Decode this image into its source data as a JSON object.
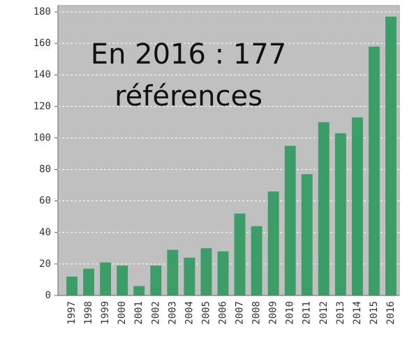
{
  "chart_data": {
    "type": "bar",
    "categories": [
      "1997",
      "1998",
      "1999",
      "2000",
      "2001",
      "2002",
      "2003",
      "2004",
      "2005",
      "2006",
      "2007",
      "2008",
      "2009",
      "2010",
      "2011",
      "2012",
      "2013",
      "2014",
      "2015",
      "2016"
    ],
    "values": [
      12,
      17,
      21,
      19,
      6,
      19,
      29,
      24,
      30,
      28,
      52,
      44,
      66,
      95,
      77,
      110,
      103,
      113,
      158,
      177
    ],
    "color": "#3c9d68",
    "ylim": [
      0,
      184
    ],
    "yticks": [
      0,
      20,
      40,
      60,
      80,
      100,
      120,
      140,
      160,
      180
    ],
    "grid": true,
    "annotations": [
      "En 2016 : 177",
      "références"
    ]
  }
}
